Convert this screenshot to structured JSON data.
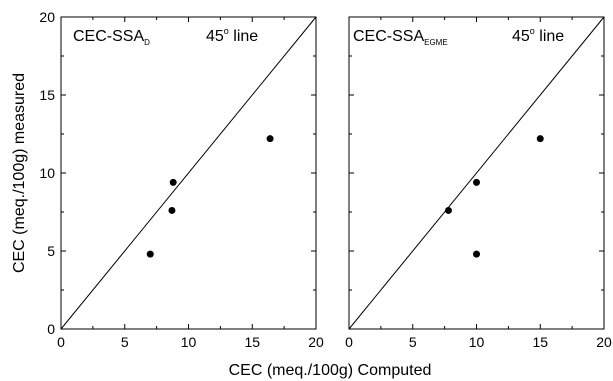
{
  "figure": {
    "xlabel": "CEC (meq./100g) Computed",
    "ylabel": "CEC (meq./100g) measured"
  },
  "chart_data": [
    {
      "type": "scatter",
      "panel_label": {
        "main": "CEC-SSA",
        "subscript": "D"
      },
      "annotation": {
        "main": "45",
        "superscript": "o",
        "rest": " line"
      },
      "xlim": [
        0,
        20
      ],
      "ylim": [
        0,
        20
      ],
      "xticks": [
        0,
        5,
        10,
        15,
        20
      ],
      "yticks": [
        0,
        5,
        10,
        15,
        20
      ],
      "reference_line": {
        "slope": 1,
        "intercept": 0
      },
      "points": [
        {
          "x": 7.0,
          "y": 4.8
        },
        {
          "x": 8.7,
          "y": 7.6
        },
        {
          "x": 8.8,
          "y": 9.4
        },
        {
          "x": 16.4,
          "y": 12.2
        }
      ]
    },
    {
      "type": "scatter",
      "panel_label": {
        "main": "CEC-SSA",
        "subscript": "EGME"
      },
      "annotation": {
        "main": "45",
        "superscript": "o",
        "rest": " line"
      },
      "xlim": [
        0,
        20
      ],
      "ylim": [
        0,
        20
      ],
      "xticks": [
        0,
        5,
        10,
        15,
        20
      ],
      "yticks": [
        0,
        5,
        10,
        15,
        20
      ],
      "reference_line": {
        "slope": 1,
        "intercept": 0
      },
      "points": [
        {
          "x": 7.8,
          "y": 7.6
        },
        {
          "x": 10.0,
          "y": 9.4
        },
        {
          "x": 10.0,
          "y": 4.8
        },
        {
          "x": 15.0,
          "y": 12.2
        }
      ]
    }
  ]
}
